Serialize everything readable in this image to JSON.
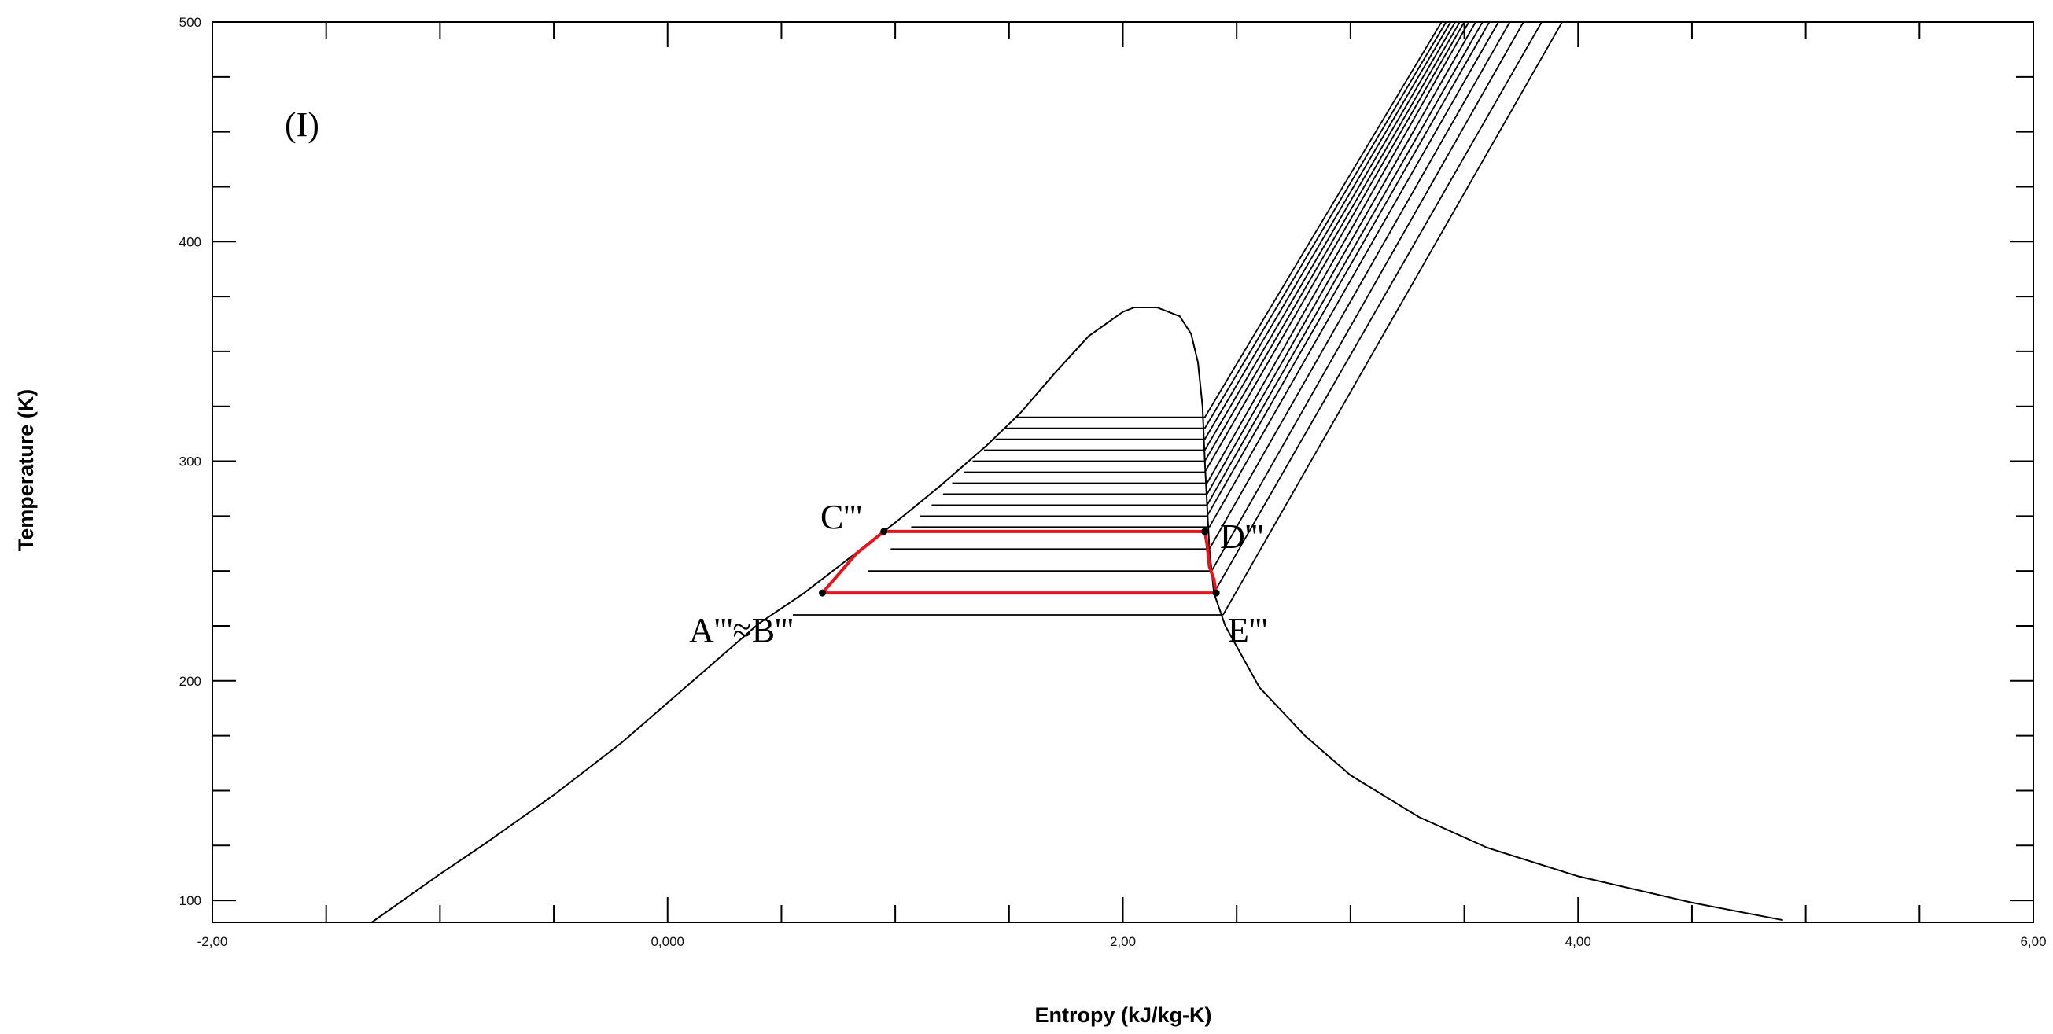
{
  "chart_data": {
    "type": "line",
    "title": "",
    "xlabel": "Entropy (kJ/kg-K)",
    "ylabel": "Temperature (K)",
    "xlim": [
      -2.0,
      6.0
    ],
    "ylim": [
      90,
      500
    ],
    "x_ticks": [
      {
        "value": -2.0,
        "label": "-2,00"
      },
      {
        "value": 0.0,
        "label": "0,000"
      },
      {
        "value": 2.0,
        "label": "2,00"
      },
      {
        "value": 4.0,
        "label": "4,00"
      },
      {
        "value": 6.0,
        "label": "6,00"
      }
    ],
    "y_ticks": [
      {
        "value": 100,
        "label": "100"
      },
      {
        "value": 200,
        "label": "200"
      },
      {
        "value": 300,
        "label": "300"
      },
      {
        "value": 400,
        "label": "400"
      },
      {
        "value": 500,
        "label": "500"
      }
    ],
    "panel_label": "(I)",
    "grid": false,
    "line_color": "#000000",
    "cycle_color": "#e8131b",
    "saturation_dome": {
      "liquid_line": [
        [
          -1.3,
          90
        ],
        [
          -1.0,
          112
        ],
        [
          -0.8,
          126
        ],
        [
          -0.5,
          148
        ],
        [
          -0.2,
          172
        ],
        [
          0.0,
          190
        ],
        [
          0.2,
          208
        ],
        [
          0.4,
          226
        ],
        [
          0.6,
          240
        ],
        [
          0.8,
          256
        ],
        [
          1.0,
          272
        ],
        [
          1.2,
          289
        ],
        [
          1.4,
          307
        ],
        [
          1.55,
          322
        ],
        [
          1.7,
          340
        ],
        [
          1.85,
          357
        ],
        [
          2.0,
          368
        ],
        [
          2.05,
          370
        ]
      ],
      "vapor_line": [
        [
          2.05,
          370
        ],
        [
          2.15,
          370
        ],
        [
          2.25,
          366
        ],
        [
          2.3,
          358
        ],
        [
          2.33,
          345
        ],
        [
          2.35,
          325
        ],
        [
          2.36,
          300
        ],
        [
          2.37,
          280
        ],
        [
          2.38,
          260
        ],
        [
          2.4,
          240
        ],
        [
          2.45,
          225
        ],
        [
          2.6,
          197
        ],
        [
          2.8,
          175
        ],
        [
          3.0,
          157
        ],
        [
          3.3,
          138
        ],
        [
          3.6,
          124
        ],
        [
          4.0,
          111
        ],
        [
          4.5,
          99
        ],
        [
          4.9,
          91
        ]
      ]
    },
    "isobars_two_phase": [
      {
        "T": 320,
        "s_liquid": 1.53,
        "s_vapor": 2.36
      },
      {
        "T": 315,
        "s_liquid": 1.48,
        "s_vapor": 2.36
      },
      {
        "T": 310,
        "s_liquid": 1.44,
        "s_vapor": 2.36
      },
      {
        "T": 305,
        "s_liquid": 1.39,
        "s_vapor": 2.36
      },
      {
        "T": 300,
        "s_liquid": 1.34,
        "s_vapor": 2.36
      },
      {
        "T": 295,
        "s_liquid": 1.3,
        "s_vapor": 2.36
      },
      {
        "T": 290,
        "s_liquid": 1.25,
        "s_vapor": 2.37
      },
      {
        "T": 285,
        "s_liquid": 1.21,
        "s_vapor": 2.37
      },
      {
        "T": 280,
        "s_liquid": 1.16,
        "s_vapor": 2.37
      },
      {
        "T": 275,
        "s_liquid": 1.11,
        "s_vapor": 2.37
      },
      {
        "T": 270,
        "s_liquid": 1.07,
        "s_vapor": 2.38
      },
      {
        "T": 260,
        "s_liquid": 0.98,
        "s_vapor": 2.38
      },
      {
        "T": 250,
        "s_liquid": 0.88,
        "s_vapor": 2.39
      },
      {
        "T": 240,
        "s_liquid": 0.74,
        "s_vapor": 2.4
      },
      {
        "T": 230,
        "s_liquid": 0.55,
        "s_vapor": 2.44
      }
    ],
    "superheated_isobars": [
      {
        "s_start": 2.36,
        "T_start": 320,
        "s_end": 3.4,
        "T_end": 500
      },
      {
        "s_start": 2.36,
        "T_start": 315,
        "s_end": 3.42,
        "T_end": 500
      },
      {
        "s_start": 2.36,
        "T_start": 310,
        "s_end": 3.44,
        "T_end": 500
      },
      {
        "s_start": 2.36,
        "T_start": 305,
        "s_end": 3.46,
        "T_end": 500
      },
      {
        "s_start": 2.36,
        "T_start": 300,
        "s_end": 3.48,
        "T_end": 500
      },
      {
        "s_start": 2.36,
        "T_start": 295,
        "s_end": 3.5,
        "T_end": 500
      },
      {
        "s_start": 2.37,
        "T_start": 290,
        "s_end": 3.52,
        "T_end": 500
      },
      {
        "s_start": 2.37,
        "T_start": 285,
        "s_end": 3.55,
        "T_end": 500
      },
      {
        "s_start": 2.37,
        "T_start": 280,
        "s_end": 3.58,
        "T_end": 500
      },
      {
        "s_start": 2.37,
        "T_start": 275,
        "s_end": 3.61,
        "T_end": 500
      },
      {
        "s_start": 2.38,
        "T_start": 270,
        "s_end": 3.65,
        "T_end": 500
      },
      {
        "s_start": 2.38,
        "T_start": 260,
        "s_end": 3.7,
        "T_end": 500
      },
      {
        "s_start": 2.39,
        "T_start": 250,
        "s_end": 3.76,
        "T_end": 500
      },
      {
        "s_start": 2.4,
        "T_start": 240,
        "s_end": 3.84,
        "T_end": 500
      },
      {
        "s_start": 2.44,
        "T_start": 230,
        "s_end": 3.93,
        "T_end": 500
      }
    ],
    "cycle": {
      "path": [
        [
          0.68,
          240
        ],
        [
          0.83,
          258
        ],
        [
          0.95,
          268
        ],
        [
          2.36,
          268
        ],
        [
          2.37,
          262
        ],
        [
          2.38,
          252
        ],
        [
          2.4,
          246
        ],
        [
          2.41,
          240
        ],
        [
          0.68,
          240
        ]
      ],
      "points": [
        {
          "name": "A'''≈B'''",
          "s": 0.68,
          "T": 240
        },
        {
          "name": "C'''",
          "s": 0.95,
          "T": 268
        },
        {
          "name": "D'''",
          "s": 2.36,
          "T": 268
        },
        {
          "name": "E'''",
          "s": 2.41,
          "T": 240
        }
      ]
    }
  }
}
